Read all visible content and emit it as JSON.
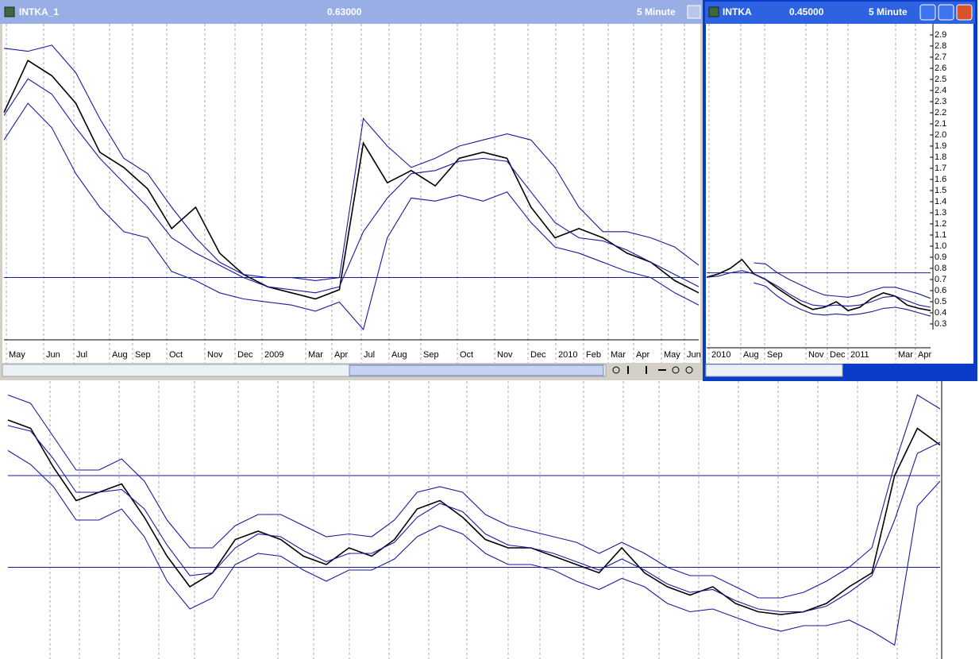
{
  "windows": [
    {
      "title": "INTKA_1",
      "price": "0.63000",
      "interval": "5 Minute",
      "chart": {
        "type": "line",
        "ylim": [
          0,
          100
        ],
        "grid": true,
        "series": [
          {
            "color": "#000000",
            "values": [
              71,
              88,
              83,
              74,
              58,
              53,
              46,
              33,
              40,
              25,
              18,
              14,
              12,
              10,
              13,
              61,
              48,
              52,
              47,
              56,
              58,
              56,
              40,
              30,
              33,
              30,
              25,
              22,
              16,
              12
            ]
          },
          {
            "color": "#1a1a9c",
            "values": [
              70,
              82,
              77,
              66,
              56,
              48,
              40,
              30,
              25,
              21,
              17,
              14,
              13,
              12,
              14,
              32,
              43,
              51,
              52,
              55,
              56,
              55,
              45,
              35,
              30,
              29,
              26,
              22,
              18,
              14
            ]
          },
          {
            "color": "#1a1a9c",
            "values": [
              92,
              91,
              93,
              84,
              69,
              56,
              51,
              40,
              30,
              22,
              18,
              17,
              17,
              16,
              17,
              69,
              60,
              53,
              56,
              60,
              62,
              64,
              62,
              53,
              40,
              32,
              32,
              30,
              27,
              21
            ]
          },
          {
            "color": "#1a1a9c",
            "values": [
              62,
              74,
              66,
              51,
              40,
              32,
              30,
              19,
              16,
              12,
              10,
              9,
              8,
              6,
              9,
              0,
              30,
              43,
              42,
              44,
              42,
              45,
              35,
              27,
              25,
              22,
              19,
              17,
              12,
              8
            ]
          }
        ],
        "hlines": [
          17
        ],
        "x_labels": [
          "May",
          "Jun",
          "Jul",
          "Aug",
          "Sep",
          "Oct",
          "Nov",
          "Dec",
          "2009",
          "Mar",
          "Apr",
          "Jul",
          "Aug",
          "Sep",
          "Oct",
          "Nov",
          "Dec",
          "2010",
          "Feb",
          "Mar",
          "Apr",
          "May",
          "Jun"
        ]
      }
    },
    {
      "title": "INTKA",
      "price": "0.45000",
      "interval": "5 Minute",
      "chart": {
        "type": "line",
        "ylim": [
          0.25,
          3.0
        ],
        "grid": true,
        "yticks": [
          0.3,
          0.4,
          0.5,
          0.6,
          0.7,
          0.8,
          0.9,
          {
            "value": 1.0,
            "label": "1.0"
          },
          1.1,
          1.2,
          1.3,
          1.4,
          1.5,
          1.6,
          1.7,
          1.8,
          1.9,
          {
            "value": 2.0,
            "label": "2.0"
          },
          2.1,
          2.2,
          2.3,
          2.4,
          2.5,
          2.6,
          2.7,
          2.8,
          2.9
        ],
        "series": [
          {
            "color": "#000000",
            "values": [
              0.72,
              0.75,
              0.8,
              0.88,
              0.75,
              0.7,
              0.62,
              0.55,
              0.48,
              0.43,
              0.45,
              0.5,
              0.42,
              0.45,
              0.53,
              0.58,
              0.55,
              0.47,
              0.44,
              0.42
            ]
          },
          {
            "color": "#1a1a9c",
            "values": [
              0.72,
              0.73,
              0.76,
              0.78,
              0.75,
              0.7,
              0.64,
              0.57,
              0.51,
              0.47,
              0.46,
              0.47,
              0.46,
              0.47,
              0.5,
              0.54,
              0.55,
              0.51,
              0.47,
              0.45
            ]
          },
          {
            "color": "#1a1a9c",
            "values": [
              null,
              null,
              null,
              null,
              0.85,
              0.84,
              0.76,
              0.7,
              0.65,
              0.6,
              0.56,
              0.55,
              0.54,
              0.56,
              0.6,
              0.63,
              0.63,
              0.6,
              0.57,
              0.53
            ]
          },
          {
            "color": "#1a1a9c",
            "values": [
              null,
              null,
              null,
              null,
              0.67,
              0.64,
              0.55,
              0.48,
              0.43,
              0.39,
              0.38,
              0.39,
              0.38,
              0.39,
              0.41,
              0.44,
              0.45,
              0.43,
              0.4,
              0.37
            ]
          }
        ],
        "hlines": [
          0.76
        ],
        "x_labels": [
          "2010",
          "Aug",
          "Sep",
          "Nov",
          "Dec",
          "2011",
          "Mar",
          "Apr"
        ]
      }
    }
  ],
  "bottom_chart": {
    "type": "line",
    "ylim": [
      0,
      100
    ],
    "grid": true,
    "series": [
      {
        "color": "#000000",
        "values": [
          86,
          83,
          69,
          57,
          60,
          63,
          51,
          37,
          26,
          31,
          43,
          46,
          43,
          37,
          34,
          40,
          37,
          43,
          54,
          57,
          51,
          43,
          40,
          40,
          37,
          34,
          31,
          40,
          31,
          26,
          23,
          26,
          20,
          17,
          16,
          17,
          20,
          26,
          31,
          66,
          83,
          77
        ]
      },
      {
        "color": "#1a1a9c",
        "values": [
          84,
          82,
          72,
          60,
          60,
          61,
          54,
          41,
          30,
          31,
          40,
          45,
          44,
          39,
          35,
          38,
          38,
          42,
          51,
          56,
          53,
          45,
          41,
          40,
          38,
          35,
          32,
          36,
          32,
          27,
          24,
          25,
          21,
          18,
          17,
          17,
          19,
          24,
          30,
          50,
          74,
          78
        ]
      },
      {
        "color": "#1a1a9c",
        "values": [
          95,
          92,
          80,
          68,
          68,
          72,
          64,
          50,
          40,
          40,
          48,
          52,
          52,
          48,
          44,
          45,
          44,
          50,
          60,
          62,
          60,
          52,
          48,
          46,
          44,
          42,
          38,
          42,
          38,
          33,
          30,
          30,
          26,
          22,
          22,
          24,
          28,
          33,
          40,
          70,
          95,
          90
        ]
      },
      {
        "color": "#1a1a9c",
        "values": [
          75,
          70,
          62,
          50,
          50,
          54,
          44,
          28,
          18,
          22,
          34,
          38,
          37,
          32,
          28,
          32,
          32,
          36,
          44,
          48,
          45,
          38,
          34,
          34,
          32,
          28,
          25,
          29,
          26,
          20,
          17,
          18,
          15,
          12,
          10,
          12,
          12,
          14,
          10,
          5,
          55,
          64
        ]
      }
    ],
    "hlines": [
      66,
      33
    ]
  }
}
